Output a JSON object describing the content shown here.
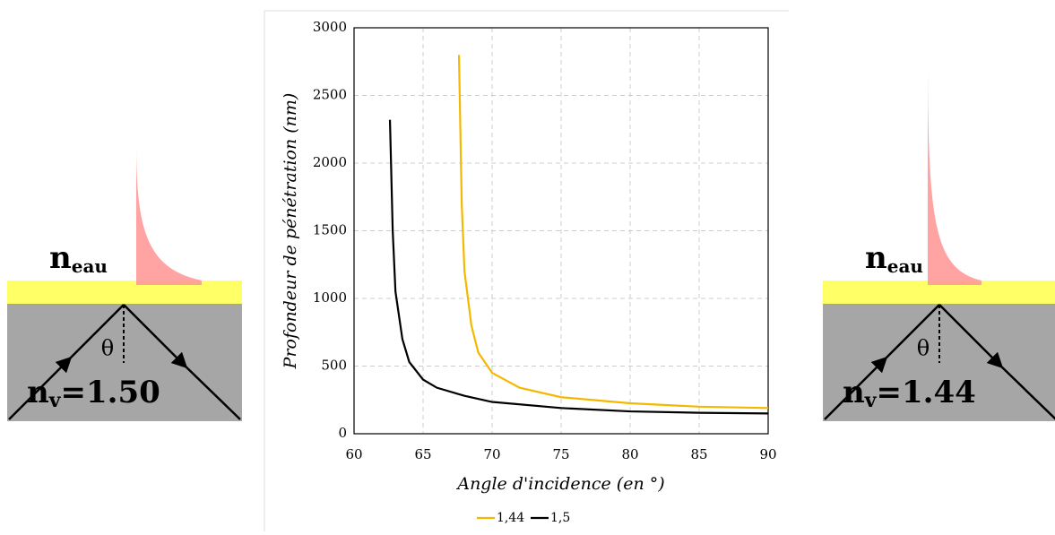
{
  "chart_data": {
    "type": "line",
    "x_label": "Angle d'incidence (en °)",
    "y_label": "Profondeur de pénétration (nm)",
    "xlim": [
      60,
      90
    ],
    "xticks": [
      60,
      65,
      70,
      75,
      80,
      85,
      90
    ],
    "ylim": [
      0,
      3000
    ],
    "yticks": [
      0,
      500,
      1000,
      1500,
      2000,
      2500,
      3000
    ],
    "grid": true,
    "legend": "bottom",
    "series": [
      {
        "name": "1,44",
        "color": "#f5b800",
        "x": [
          67.6,
          67.8,
          68,
          68.5,
          69,
          70,
          72,
          75,
          80,
          85,
          90
        ],
        "values": [
          2800,
          1700,
          1200,
          800,
          600,
          450,
          340,
          270,
          225,
          200,
          190
        ]
      },
      {
        "name": "1,5",
        "color": "#000000",
        "x": [
          62.6,
          62.8,
          63,
          63.5,
          64,
          65,
          66,
          68,
          70,
          75,
          80,
          85,
          90
        ],
        "values": [
          2320,
          1500,
          1050,
          700,
          530,
          400,
          340,
          280,
          235,
          190,
          165,
          155,
          150
        ]
      }
    ]
  },
  "diagrams": [
    {
      "medium": "n",
      "medium_sub": "eau",
      "angle": "θ",
      "glass": "n",
      "glass_sub": "v",
      "glass_value": "=1.50"
    },
    {
      "medium": "n",
      "medium_sub": "eau",
      "angle": "θ",
      "glass": "n",
      "glass_sub": "v",
      "glass_value": "=1.44"
    }
  ]
}
